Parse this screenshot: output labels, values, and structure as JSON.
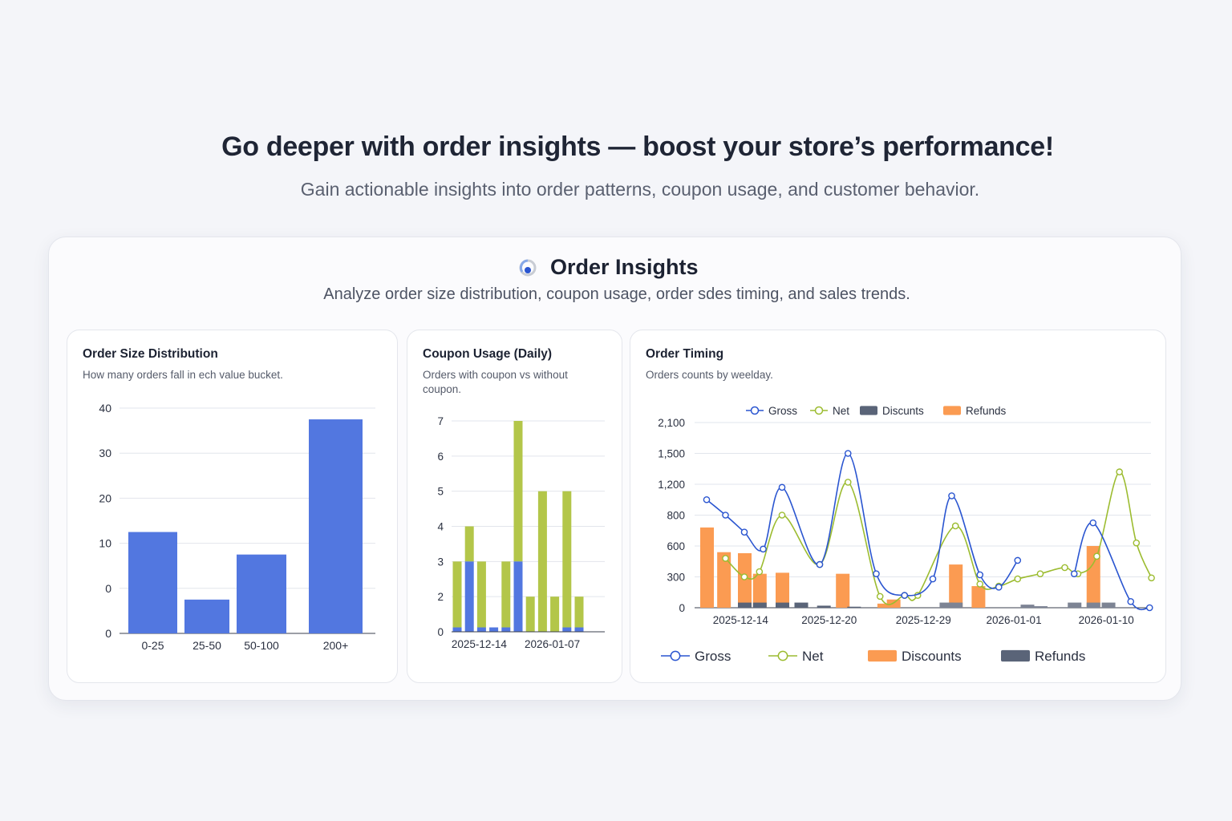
{
  "hero": {
    "title": "Go deeper with order insights — boost your store’s performance!",
    "subtitle": "Gain actionable insights into order patterns, coupon usage, and customer behavior."
  },
  "card": {
    "title": "Order Insights",
    "subtitle": "Analyze order size distribution, coupon usage, order sdes timing, and sales trends.",
    "icon": "insights-pie-icon"
  },
  "colors": {
    "blue": "#5277e0",
    "green": "#b3c649",
    "orange": "#fb9b52",
    "dark": "#5a6478",
    "gross": "#2a55d0",
    "net": "#9cbc30"
  },
  "chart_data": [
    {
      "type": "bar",
      "title": "Order Size Distribution",
      "subtitle": "How many orders fall in ech value bucket.",
      "categories": [
        "0-25",
        "25-50",
        "50-100",
        "200+"
      ],
      "values": [
        18,
        6,
        14,
        38
      ],
      "y_tick_labels": [
        "40",
        "30",
        "20",
        "10",
        "0",
        "0"
      ],
      "ylim": [
        0,
        40
      ],
      "grid": true
    },
    {
      "type": "bar",
      "stacked": true,
      "title": "Coupon Usage (Daily)",
      "subtitle": "Orders with coupon vs without coupon.",
      "x_tick_labels": [
        {
          "at": 1.8,
          "label": "2025-12-14"
        },
        {
          "at": 7.8,
          "label": "2026-01-07"
        }
      ],
      "y_ticks": [
        7,
        6,
        5,
        4,
        3,
        2,
        0
      ],
      "y_tick_labels": [
        "7",
        "6",
        "5",
        "4",
        "3",
        "2",
        "0"
      ],
      "series": [
        {
          "key": "with_coupon",
          "values": [
            0.25,
            3,
            0.25,
            0.25,
            0.25,
            3,
            0,
            0,
            0,
            0.25,
            0.25
          ]
        },
        {
          "key": "without_coupon",
          "values": [
            2.75,
            1,
            2.75,
            0,
            2.75,
            4,
            2,
            5,
            2,
            4.75,
            1.75
          ]
        }
      ],
      "grid": true
    },
    {
      "type": "line",
      "title": "Order Timing",
      "subtitle": "Orders counts by weelday.",
      "y_ticks": [
        2100,
        1500,
        1200,
        800,
        600,
        300,
        0
      ],
      "y_tick_labels": [
        "2,100",
        "1,500",
        "1,200",
        "800",
        "600",
        "300",
        "0"
      ],
      "x_tick_labels": [
        {
          "at": 1.8,
          "label": "2025-12-14"
        },
        {
          "at": 6.5,
          "label": "2025-12-20"
        },
        {
          "at": 11.5,
          "label": "2025-12-29"
        },
        {
          "at": 16.3,
          "label": "2026-01-01"
        },
        {
          "at": 21.2,
          "label": "2026-01-10"
        }
      ],
      "legend_top": [
        "Gross",
        "Net",
        "Discunts",
        "Refunds"
      ],
      "legend_bottom": [
        "Gross",
        "Net",
        "Discounts",
        "Refunds"
      ],
      "gross": [
        [
          0,
          1000
        ],
        [
          1,
          800
        ],
        [
          2,
          690
        ],
        [
          3,
          570
        ],
        [
          4,
          1160
        ],
        [
          6,
          420
        ],
        [
          7.5,
          1500
        ],
        [
          9,
          330
        ],
        [
          10.5,
          120
        ],
        [
          12,
          280
        ],
        [
          13,
          1050
        ],
        [
          14.5,
          320
        ],
        [
          15.5,
          200
        ],
        [
          16.5,
          460
        ],
        null,
        [
          19.5,
          330
        ],
        [
          20.5,
          750
        ],
        [
          22.5,
          60
        ],
        [
          23.5,
          0
        ]
      ],
      "net": [
        [
          1,
          480
        ],
        [
          2,
          300
        ],
        [
          2.8,
          350
        ],
        [
          4,
          800
        ],
        [
          6,
          420
        ],
        [
          7.5,
          1220
        ],
        [
          9.2,
          110
        ],
        [
          10.5,
          120
        ],
        [
          11.2,
          120
        ],
        [
          13.2,
          730
        ],
        [
          14.5,
          230
        ],
        [
          15.5,
          210
        ],
        [
          16.5,
          280
        ],
        [
          17.7,
          330
        ],
        [
          19,
          390
        ],
        [
          19.7,
          330
        ],
        [
          20.7,
          500
        ],
        [
          21.9,
          1320
        ],
        [
          22.8,
          620
        ],
        [
          23.6,
          290
        ]
      ],
      "orange_bars": [
        [
          0,
          720
        ],
        [
          0.9,
          540
        ],
        [
          2,
          530
        ],
        [
          2.8,
          330
        ],
        [
          4,
          340
        ],
        [
          7.2,
          330
        ],
        [
          9.4,
          40
        ],
        [
          9.9,
          80
        ],
        [
          13.2,
          420
        ],
        [
          14.4,
          210
        ],
        [
          20.5,
          600
        ]
      ],
      "dark_bars": [
        [
          2,
          50
        ],
        [
          2.8,
          50
        ],
        [
          4,
          50
        ],
        [
          5,
          50
        ],
        [
          6.2,
          20
        ],
        [
          7.8,
          10
        ]
      ],
      "gray_bars": [
        [
          12.7,
          50
        ],
        [
          13.2,
          50
        ],
        [
          17,
          30
        ],
        [
          17.7,
          15
        ],
        [
          19.5,
          50
        ],
        [
          20.5,
          50
        ],
        [
          21.3,
          50
        ]
      ],
      "grid": true,
      "legend": "top and bottom"
    }
  ]
}
